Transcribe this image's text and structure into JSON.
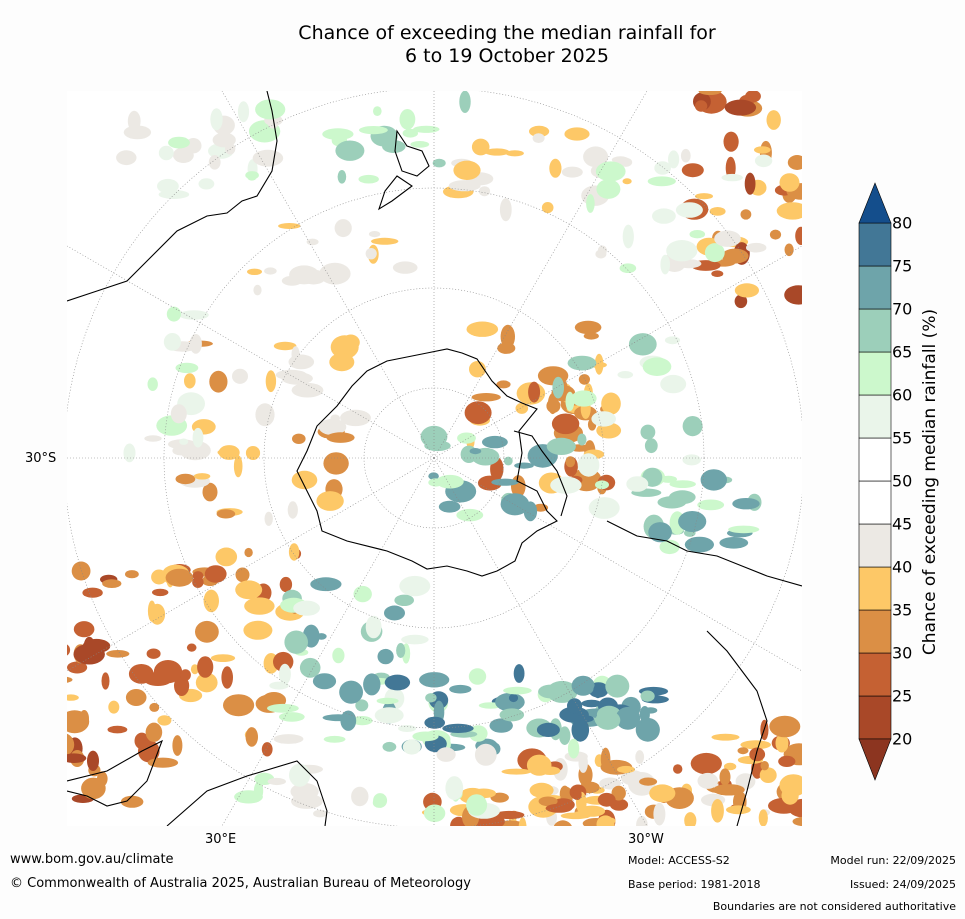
{
  "title": {
    "line1": "Chance of exceeding the median rainfall for",
    "line2": "6 to 19 October 2025"
  },
  "map": {
    "lat_label": "30°S",
    "lon_label_left": "30°E",
    "lon_label_right": "30°W",
    "legend_bins": [
      {
        "from": 0,
        "to": 20,
        "color": "#8c3520"
      },
      {
        "from": 20,
        "to": 25,
        "color": "#a94828"
      },
      {
        "from": 25,
        "to": 30,
        "color": "#c56133"
      },
      {
        "from": 30,
        "to": 35,
        "color": "#db8f45"
      },
      {
        "from": 35,
        "to": 40,
        "color": "#fdc867"
      },
      {
        "from": 40,
        "to": 45,
        "color": "#ece9e4"
      },
      {
        "from": 45,
        "to": 50,
        "color": "#ffffff"
      },
      {
        "from": 50,
        "to": 55,
        "color": "#ffffff"
      },
      {
        "from": 55,
        "to": 60,
        "color": "#eaf5ea"
      },
      {
        "from": 60,
        "to": 65,
        "color": "#ccf8cc"
      },
      {
        "from": 65,
        "to": 70,
        "color": "#9ccfba"
      },
      {
        "from": 70,
        "to": 75,
        "color": "#6ea4aa"
      },
      {
        "from": 75,
        "to": 80,
        "color": "#427796"
      },
      {
        "from": 80,
        "to": 100,
        "color": "#144e8c"
      }
    ]
  },
  "colorbar": {
    "label": "Chance of exceeding median rainfall (%)",
    "ticks": [
      "20",
      "25",
      "30",
      "35",
      "40",
      "45",
      "50",
      "55",
      "60",
      "65",
      "70",
      "75",
      "80"
    ]
  },
  "footer": {
    "url": "www.bom.gov.au/climate",
    "copyright": "© Commonwealth of Australia 2025, Australian Bureau of Meteorology",
    "model": "Model: ACCESS-S2",
    "base_period": "Base period: 1981-2018",
    "model_run": "Model run: 22/09/2025",
    "issued": "Issued: 24/09/2025",
    "disclaimer": "Boundaries are not considered authoritative"
  }
}
